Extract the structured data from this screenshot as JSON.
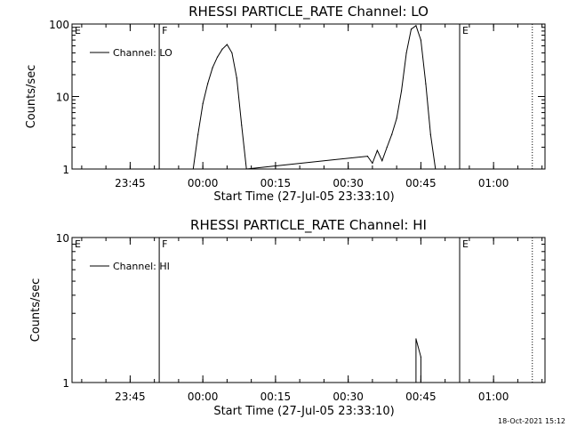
{
  "chart_data": [
    {
      "type": "line",
      "title": "RHESSI PARTICLE_RATE Channel: LO",
      "xlabel": "Start Time (27-Jul-05 23:33:10)",
      "ylabel": "Counts/sec",
      "y_scale": "log",
      "ylim": [
        1,
        100
      ],
      "xlim": [
        "23:33",
        "01:11"
      ],
      "x_ticks": [
        "23:45",
        "00:00",
        "00:15",
        "00:30",
        "00:45",
        "01:00"
      ],
      "y_ticks": [
        "1",
        "10",
        "100"
      ],
      "legend": {
        "label": "Channel: LO",
        "placement": "top-left"
      },
      "markers": [
        {
          "label": "E",
          "time": "23:33",
          "style": "dotted"
        },
        {
          "label": "F",
          "time": "23:51",
          "style": "solid"
        },
        {
          "label": "E",
          "time": "00:53",
          "style": "solid"
        },
        {
          "label": "",
          "time": "01:08",
          "style": "dotted"
        }
      ],
      "series": [
        {
          "name": "Channel: LO",
          "x": [
            "23:58",
            "23:59",
            "00:00",
            "00:01",
            "00:02",
            "00:03",
            "00:04",
            "00:05",
            "00:06",
            "00:07",
            "00:08",
            "00:09",
            "00:34",
            "00:35",
            "00:36",
            "00:37",
            "00:38",
            "00:39",
            "00:40",
            "00:41",
            "00:42",
            "00:43",
            "00:44",
            "00:45",
            "00:46",
            "00:47",
            "00:48"
          ],
          "y": [
            1,
            3,
            8,
            15,
            25,
            35,
            45,
            52,
            40,
            18,
            4,
            1,
            1.5,
            1.2,
            1.8,
            1.3,
            2,
            3,
            5,
            12,
            40,
            85,
            95,
            60,
            15,
            3,
            1
          ]
        }
      ]
    },
    {
      "type": "line",
      "title": "RHESSI PARTICLE_RATE Channel: HI",
      "xlabel": "Start Time (27-Jul-05 23:33:10)",
      "ylabel": "Counts/sec",
      "y_scale": "log",
      "ylim": [
        1,
        10
      ],
      "xlim": [
        "23:33",
        "01:11"
      ],
      "x_ticks": [
        "23:45",
        "00:00",
        "00:15",
        "00:30",
        "00:45",
        "01:00"
      ],
      "y_ticks": [
        "1",
        "10"
      ],
      "legend": {
        "label": "Channel: HI",
        "placement": "top-left"
      },
      "markers": [
        {
          "label": "E",
          "time": "23:33",
          "style": "dotted"
        },
        {
          "label": "F",
          "time": "23:51",
          "style": "solid"
        },
        {
          "label": "E",
          "time": "00:53",
          "style": "solid"
        },
        {
          "label": "",
          "time": "01:08",
          "style": "dotted"
        }
      ],
      "series": [
        {
          "name": "Channel: HI",
          "x": [
            "00:44",
            "00:44",
            "00:45",
            "00:45"
          ],
          "y": [
            1,
            2,
            1.5,
            1
          ]
        }
      ]
    }
  ],
  "footer": {
    "timestamp": "18-Oct-2021 15:12"
  }
}
